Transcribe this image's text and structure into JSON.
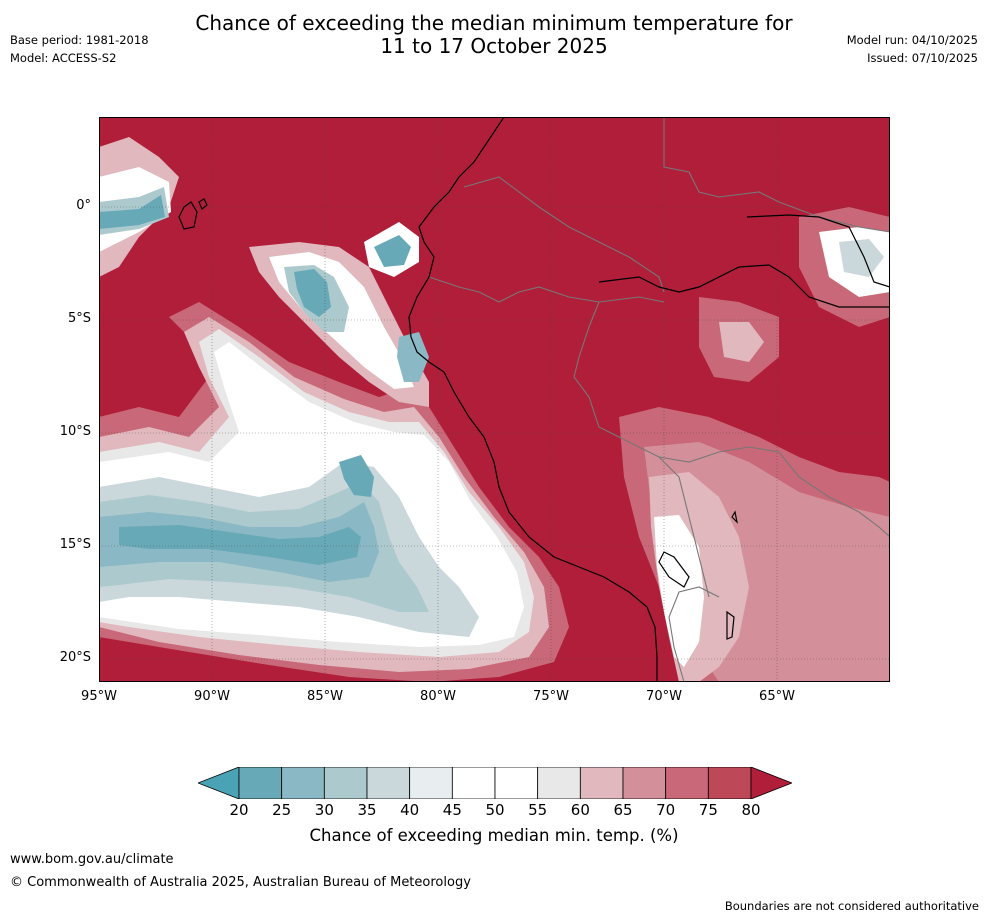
{
  "title": {
    "line1": "Chance of exceeding the median minimum temperature for",
    "line2": "11 to 17 October 2025"
  },
  "meta": {
    "base_period": "Base period: 1981-2018",
    "model": "Model: ACCESS-S2",
    "model_run": "Model run: 04/10/2025",
    "issued": "Issued: 07/10/2025"
  },
  "map": {
    "lat_labels": [
      "0°",
      "5°S",
      "10°S",
      "15°S",
      "20°S"
    ],
    "lon_labels": [
      "95°W",
      "90°W",
      "85°W",
      "80°W",
      "75°W",
      "70°W",
      "65°W"
    ]
  },
  "colorbar": {
    "ticks": [
      "20",
      "25",
      "30",
      "35",
      "40",
      "45",
      "50",
      "55",
      "60",
      "65",
      "70",
      "75",
      "80"
    ],
    "colors": [
      "#4aa3b4",
      "#68a9b7",
      "#8ab8c4",
      "#acc9cd",
      "#cad7db",
      "#e8edef",
      "#ffffff",
      "#ffffff",
      "#e8e8e8",
      "#e0b8be",
      "#d4909a",
      "#c86878",
      "#bc4858",
      "#b01e3a"
    ],
    "label": "Chance of exceeding median min. temp. (%)"
  },
  "footer": {
    "url": "www.bom.gov.au/climate",
    "copyright": "© Commonwealth of Australia 2025, Australian Bureau of Meteorology",
    "disclaimer": "Boundaries are not considered authoritative"
  }
}
